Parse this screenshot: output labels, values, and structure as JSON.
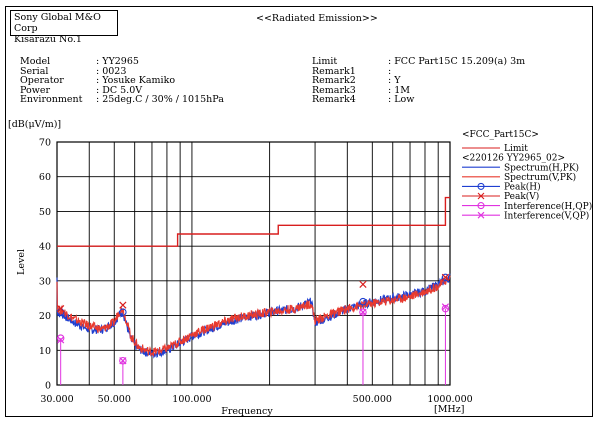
{
  "header": {
    "company": "Sony Global M&O Corp",
    "site": "Kisarazu No.1",
    "report_title": "<<Radiated Emission>>"
  },
  "info_left": [
    {
      "label": "Model",
      "value": ": YY2965"
    },
    {
      "label": "Serial",
      "value": ": 0023"
    },
    {
      "label": "Operator",
      "value": ": Yosuke Kamiko"
    },
    {
      "label": "Power",
      "value": ": DC 5.0V"
    },
    {
      "label": "Environment",
      "value": ": 25deg.C / 30% / 1015hPa"
    }
  ],
  "info_right": [
    {
      "label": "Limit",
      "value": ": FCC Part15C 15.209(a) 3m"
    },
    {
      "label": "Remark1",
      "value": ":"
    },
    {
      "label": "Remark2",
      "value": ": Y"
    },
    {
      "label": "Remark3",
      "value": ": 1M"
    },
    {
      "label": "Remark4",
      "value": ": Low"
    }
  ],
  "chart_data": {
    "type": "line",
    "xlabel": "Frequency",
    "ylabel": "Level",
    "yunit": "[dB(μV/m)]",
    "xunit": "[MHz]",
    "x_scale": "log",
    "xlim": [
      30,
      1000
    ],
    "ylim": [
      0,
      70
    ],
    "x_tick_labels": [
      {
        "value": 30,
        "label": "30.000"
      },
      {
        "value": 50,
        "label": "50.000"
      },
      {
        "value": 100,
        "label": "100.000"
      },
      {
        "value": 500,
        "label": "500.000"
      },
      {
        "value": 1000,
        "label": "1000.000"
      }
    ],
    "y_ticks": [
      0,
      10,
      20,
      30,
      40,
      50,
      60,
      70
    ],
    "grid": true,
    "legend": {
      "position": "right",
      "group1": "<FCC_Part15C>",
      "group2": "<220126 YY2965_02>",
      "entries": [
        {
          "name": "Limit",
          "color": "#d81e1e",
          "marker": "line"
        },
        {
          "name": "Spectrum(H,PK)",
          "color": "#1f3fd1",
          "marker": "line"
        },
        {
          "name": "Spectrum(V,PK)",
          "color": "#e83a2f",
          "marker": "line"
        },
        {
          "name": "Peak(H)",
          "color": "#1f3fd1",
          "marker": "circle"
        },
        {
          "name": "Peak(V)",
          "color": "#d81e1e",
          "marker": "x"
        },
        {
          "name": "Interference(H,QP)",
          "color": "#e033e0",
          "marker": "circle"
        },
        {
          "name": "Interference(V,QP)",
          "color": "#e033e0",
          "marker": "x"
        }
      ]
    },
    "limit": [
      {
        "x": [
          30,
          88
        ],
        "y": 40.0
      },
      {
        "x": [
          88,
          216
        ],
        "y": 43.5
      },
      {
        "x": [
          216,
          960
        ],
        "y": 46.0
      },
      {
        "x": [
          960,
          1000
        ],
        "y": 54.0
      }
    ],
    "series": [
      {
        "name": "Spectrum(H,PK)",
        "color": "#1f3fd1",
        "x": [
          30,
          32,
          35,
          40,
          45,
          50,
          52,
          54,
          56,
          58,
          62,
          66,
          70,
          75,
          80,
          90,
          100,
          120,
          150,
          200,
          250,
          290,
          300,
          350,
          400,
          500,
          600,
          700,
          800,
          900,
          1000
        ],
        "y": [
          21,
          20,
          18,
          16,
          16,
          18,
          20,
          21,
          17,
          13,
          10.5,
          9.5,
          9,
          9.5,
          10,
          12,
          14,
          16.5,
          19,
          21,
          22,
          24,
          18,
          20,
          22,
          24,
          25,
          26,
          27,
          29,
          31
        ]
      },
      {
        "name": "Spectrum(V,PK)",
        "color": "#e83a2f",
        "x": [
          30,
          32,
          35,
          40,
          45,
          50,
          52,
          54,
          56,
          58,
          62,
          66,
          70,
          75,
          80,
          90,
          100,
          120,
          150,
          200,
          250,
          290,
          300,
          350,
          400,
          500,
          600,
          700,
          800,
          900,
          1000
        ],
        "y": [
          22,
          21,
          19,
          17,
          16,
          18,
          21,
          22,
          18,
          14,
          11,
          10,
          9.5,
          9.8,
          10.5,
          12.5,
          14.5,
          17,
          19.5,
          21,
          22,
          23.5,
          18.5,
          20.5,
          22,
          23.5,
          24.5,
          25.5,
          27,
          28.5,
          31
        ]
      }
    ],
    "peaks_h": [
      {
        "x": 31,
        "y": 21
      },
      {
        "x": 54,
        "y": 21
      },
      {
        "x": 460,
        "y": 24
      },
      {
        "x": 960,
        "y": 31
      }
    ],
    "peaks_v": [
      {
        "x": 31,
        "y": 22
      },
      {
        "x": 54,
        "y": 23
      },
      {
        "x": 460,
        "y": 29
      },
      {
        "x": 960,
        "y": 31
      }
    ],
    "qp_h": [
      {
        "x": 31,
        "y": 13.5
      },
      {
        "x": 54,
        "y": 7
      },
      {
        "x": 460,
        "y": 21
      },
      {
        "x": 960,
        "y": 22
      }
    ],
    "qp_v": [
      {
        "x": 31,
        "y": 13
      },
      {
        "x": 54,
        "y": 7
      },
      {
        "x": 460,
        "y": 21
      },
      {
        "x": 960,
        "y": 22.5
      }
    ]
  }
}
